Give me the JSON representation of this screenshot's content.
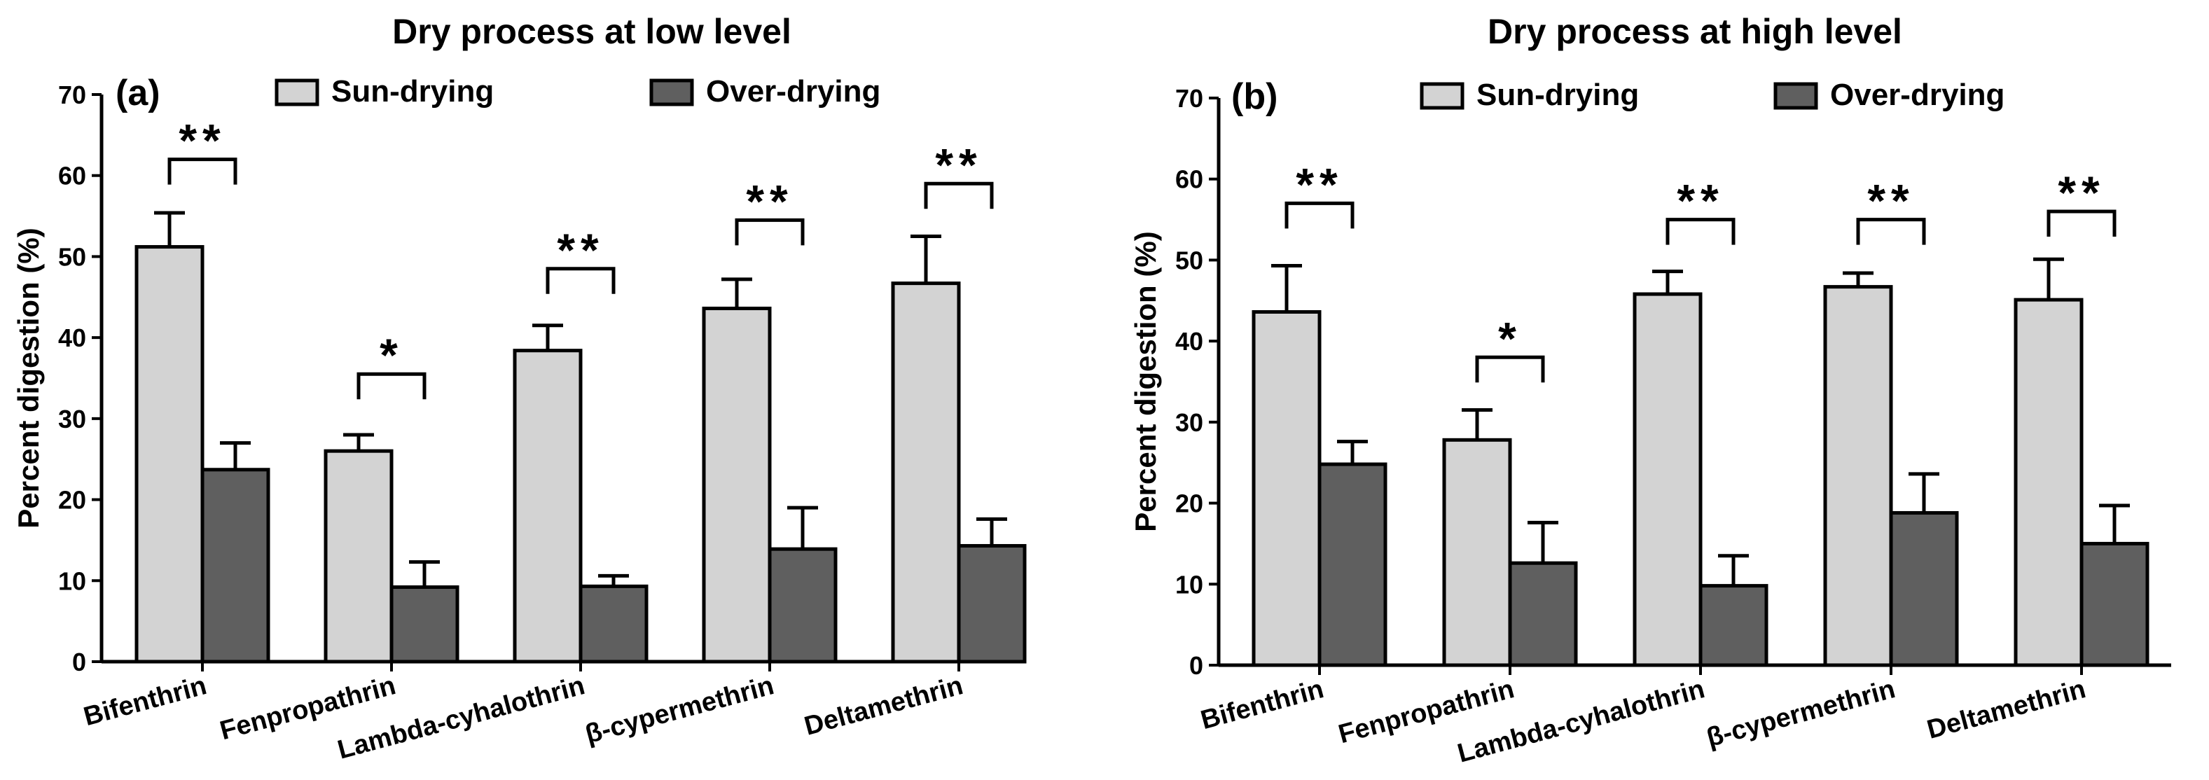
{
  "chart_data": [
    {
      "type": "bar",
      "panel": "(a)",
      "title": "Dry process at low level",
      "ylabel": "Percent digestion (%)",
      "xlabel": "",
      "ylim": [
        0,
        70
      ],
      "yticks": [
        0,
        10,
        20,
        30,
        40,
        50,
        60,
        70
      ],
      "legend_position": "top",
      "categories": [
        "Bifenthrin",
        "Fenpropathrin",
        "Lambda-cyhalothrin",
        "β-cypermethrin",
        "Deltamethrin"
      ],
      "series": [
        {
          "name": "Sun-drying",
          "color": "#d3d3d3",
          "values": [
            51.2,
            26.0,
            38.4,
            43.6,
            46.7
          ],
          "errors": [
            4.2,
            2.0,
            3.1,
            3.6,
            5.8
          ]
        },
        {
          "name": "Over-drying",
          "color": "#5f5f5f",
          "values": [
            23.7,
            9.2,
            9.3,
            13.9,
            14.3
          ],
          "errors": [
            3.3,
            3.1,
            1.3,
            5.1,
            3.3
          ]
        }
      ],
      "significance": [
        {
          "category": 0,
          "label": "**",
          "level": 62.0
        },
        {
          "category": 1,
          "label": "*",
          "level": 35.5
        },
        {
          "category": 2,
          "label": "**",
          "level": 48.5
        },
        {
          "category": 3,
          "label": "**",
          "level": 54.5
        },
        {
          "category": 4,
          "label": "**",
          "level": 59.0
        }
      ]
    },
    {
      "type": "bar",
      "panel": "(b)",
      "title": "Dry process at high level",
      "ylabel": "Percent digestion (%)",
      "xlabel": "",
      "ylim": [
        0,
        70
      ],
      "yticks": [
        0,
        10,
        20,
        30,
        40,
        50,
        60,
        70
      ],
      "legend_position": "top",
      "categories": [
        "Bifenthrin",
        "Fenpropathrin",
        "Lambda-cyhalothrin",
        "β-cypermethrin",
        "Deltamethrin"
      ],
      "series": [
        {
          "name": "Sun-drying",
          "color": "#d3d3d3",
          "values": [
            43.6,
            27.8,
            45.8,
            46.7,
            45.1
          ],
          "errors": [
            5.7,
            3.7,
            2.8,
            1.7,
            5.0
          ]
        },
        {
          "name": "Over-drying",
          "color": "#5f5f5f",
          "values": [
            24.8,
            12.6,
            9.8,
            18.8,
            15.0
          ],
          "errors": [
            2.8,
            5.0,
            3.7,
            4.8,
            4.7
          ]
        }
      ],
      "significance": [
        {
          "category": 0,
          "label": "**",
          "level": 57.0
        },
        {
          "category": 1,
          "label": "*",
          "level": 38.0
        },
        {
          "category": 2,
          "label": "**",
          "level": 55.0
        },
        {
          "category": 3,
          "label": "**",
          "level": 55.0
        },
        {
          "category": 4,
          "label": "**",
          "level": 56.0
        }
      ]
    }
  ]
}
